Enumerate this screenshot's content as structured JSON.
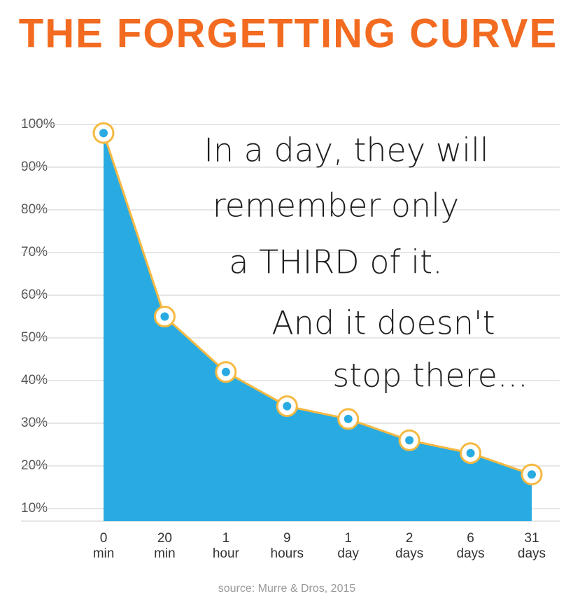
{
  "chart_data": {
    "type": "line",
    "title": "THE FORGETTING CURVE",
    "categories": [
      [
        "0",
        "min"
      ],
      [
        "20",
        "min"
      ],
      [
        "1",
        "hour"
      ],
      [
        "9",
        "hours"
      ],
      [
        "1",
        "day"
      ],
      [
        "2",
        "days"
      ],
      [
        "6",
        "days"
      ],
      [
        "31",
        "days"
      ]
    ],
    "series": [
      {
        "values": [
          98,
          55,
          42,
          34,
          31,
          26,
          23,
          18
        ],
        "color": "#29abe2",
        "line_color": "#f5b942"
      }
    ],
    "ylim": [
      10,
      100
    ],
    "yticks": [
      {
        "value": 10,
        "label": "10%"
      },
      {
        "value": 20,
        "label": "20%"
      },
      {
        "value": 30,
        "label": "30%"
      },
      {
        "value": 40,
        "label": "40%"
      },
      {
        "value": 50,
        "label": "50%"
      },
      {
        "value": 60,
        "label": "60%"
      },
      {
        "value": 70,
        "label": "70%"
      },
      {
        "value": 80,
        "label": "80%"
      },
      {
        "value": 90,
        "label": "90%"
      },
      {
        "value": 100,
        "label": "100%"
      }
    ],
    "grid": true,
    "annotations": [
      "In a day, they will",
      "remember only",
      "a THIRD of it.",
      "And it doesn't",
      "stop there..."
    ],
    "source": "source: Murre & Dros, 2015"
  }
}
